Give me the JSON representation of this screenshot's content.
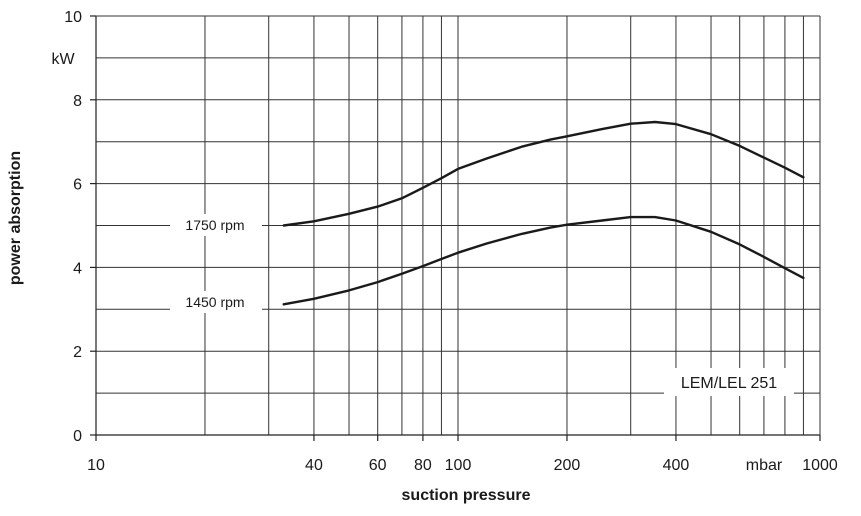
{
  "chart_data": {
    "type": "line",
    "title": "",
    "xlabel": "suction pressure",
    "ylabel": "power absorption",
    "x_scale": "log",
    "x_unit_label": "mbar",
    "y_unit_label": "kW",
    "xlim": [
      10,
      1000
    ],
    "ylim": [
      0,
      10
    ],
    "grid": true,
    "x_ticks": [
      {
        "value": 10,
        "label": "10"
      },
      {
        "value": 40,
        "label": "40"
      },
      {
        "value": 60,
        "label": "60"
      },
      {
        "value": 80,
        "label": "80"
      },
      {
        "value": 100,
        "label": "100"
      },
      {
        "value": 200,
        "label": "200"
      },
      {
        "value": 400,
        "label": "400"
      },
      {
        "value": 1000,
        "label": "1000"
      }
    ],
    "x_gridlines": [
      20,
      30,
      40,
      50,
      60,
      70,
      80,
      90,
      100,
      200,
      300,
      400,
      500,
      600,
      700,
      800,
      900
    ],
    "y_ticks": [
      {
        "value": 0,
        "label": "0"
      },
      {
        "value": 2,
        "label": "2"
      },
      {
        "value": 4,
        "label": "4"
      },
      {
        "value": 6,
        "label": "6"
      },
      {
        "value": 8,
        "label": "8"
      },
      {
        "value": 10,
        "label": "10"
      }
    ],
    "y_gridlines": [
      1,
      2,
      3,
      4,
      5,
      6,
      7,
      8,
      9
    ],
    "series": [
      {
        "name": "1750 rpm",
        "x": [
          33,
          40,
          50,
          60,
          70,
          80,
          90,
          100,
          120,
          150,
          180,
          200,
          250,
          300,
          350,
          400,
          500,
          600,
          700,
          800,
          900
        ],
        "y": [
          5.0,
          5.1,
          5.28,
          5.45,
          5.65,
          5.9,
          6.13,
          6.35,
          6.6,
          6.88,
          7.05,
          7.13,
          7.3,
          7.43,
          7.47,
          7.42,
          7.18,
          6.9,
          6.62,
          6.38,
          6.15
        ]
      },
      {
        "name": "1450 rpm",
        "x": [
          33,
          40,
          50,
          60,
          70,
          80,
          90,
          100,
          120,
          150,
          180,
          200,
          250,
          300,
          350,
          400,
          500,
          600,
          700,
          800,
          900
        ],
        "y": [
          3.12,
          3.25,
          3.45,
          3.65,
          3.85,
          4.03,
          4.2,
          4.35,
          4.57,
          4.8,
          4.95,
          5.02,
          5.12,
          5.2,
          5.2,
          5.12,
          4.85,
          4.55,
          4.25,
          3.98,
          3.75
        ]
      }
    ],
    "annotations": [
      "LEM/LEL 251"
    ]
  }
}
